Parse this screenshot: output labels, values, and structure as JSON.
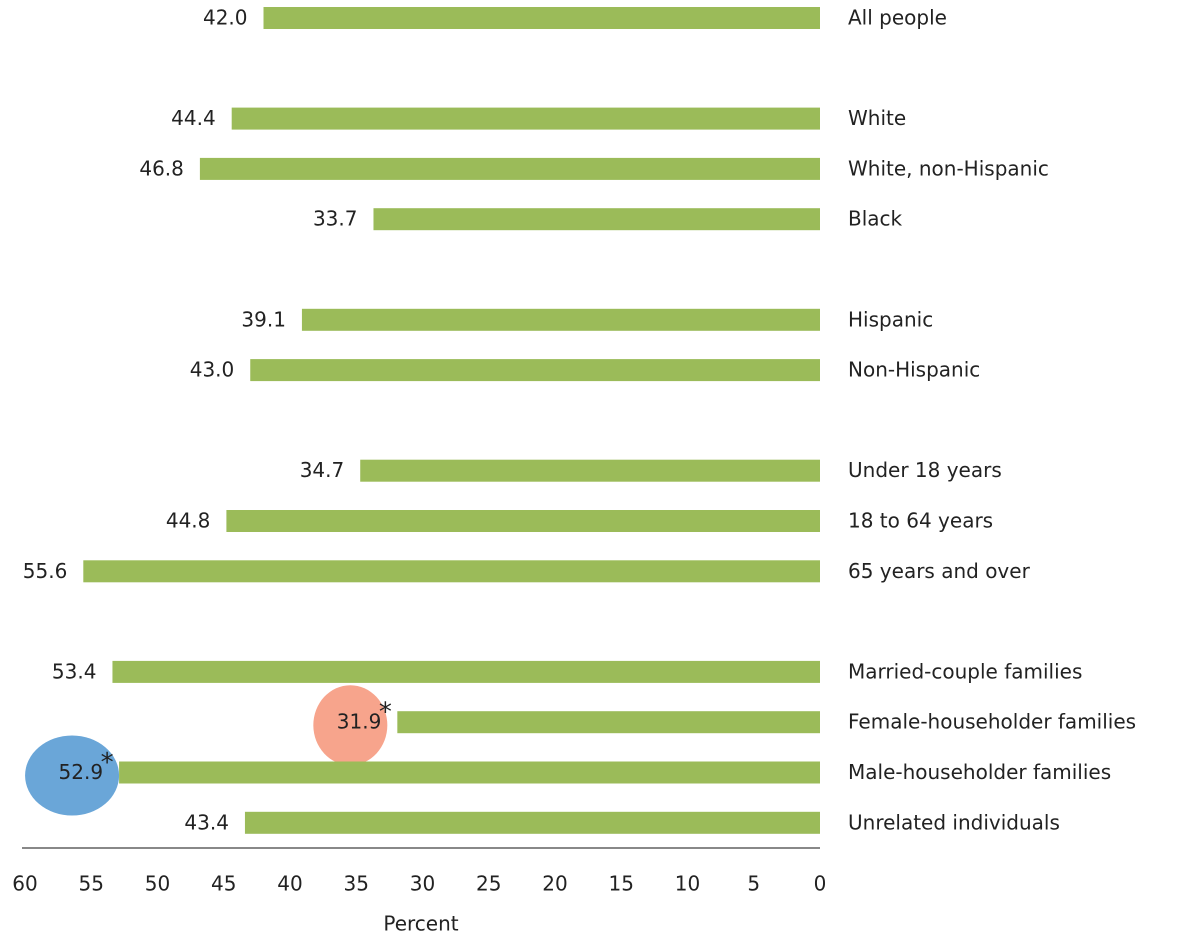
{
  "chart_data": {
    "type": "barh",
    "x_label": "Percent",
    "categories": [
      "All people",
      null,
      "White",
      "White, non-Hispanic",
      "Black",
      null,
      "Hispanic",
      "Non-Hispanic",
      null,
      "Under 18 years",
      "18 to 64 years",
      "65 years and over",
      null,
      "Married-couple families",
      "Female-householder families",
      "Male-householder families",
      "Unrelated individuals"
    ],
    "values": [
      42.0,
      null,
      44.4,
      46.8,
      33.7,
      null,
      39.1,
      43.0,
      null,
      34.7,
      44.8,
      55.6,
      null,
      53.4,
      31.9,
      52.9,
      43.4
    ],
    "value_labels": [
      "42.0",
      null,
      "44.4",
      "46.8",
      "33.7",
      null,
      "39.1",
      "43.0",
      null,
      "34.7",
      "44.8",
      "55.6",
      null,
      "53.4",
      "31.9",
      "52.9",
      "43.4"
    ],
    "flags": [
      null,
      null,
      null,
      null,
      null,
      null,
      null,
      null,
      null,
      null,
      null,
      null,
      null,
      null,
      "*",
      "*",
      null
    ],
    "highlight_colors": [
      null,
      null,
      null,
      null,
      null,
      null,
      null,
      null,
      null,
      null,
      null,
      null,
      null,
      null,
      "#f7a48c",
      "#6aa6d8",
      null
    ],
    "color": "#9bbb59",
    "xlim": [
      0,
      60
    ],
    "xticks": [
      60,
      55,
      50,
      45,
      40,
      35,
      30,
      25,
      20,
      15,
      10,
      5,
      0
    ],
    "x_reversed": true
  }
}
